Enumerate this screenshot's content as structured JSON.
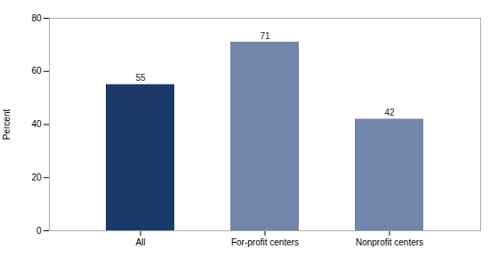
{
  "chart_data": {
    "type": "bar",
    "categories": [
      "All",
      "For-profit centers",
      "Nonprofit centers"
    ],
    "values": [
      55,
      71,
      42
    ],
    "colors": [
      "#1b3a6b",
      "#7186aa",
      "#7186aa"
    ],
    "ylabel": "Percent",
    "ylim": [
      0,
      80
    ],
    "yticks": [
      0,
      20,
      40,
      60,
      80
    ],
    "data_labels": true,
    "grid": false
  }
}
